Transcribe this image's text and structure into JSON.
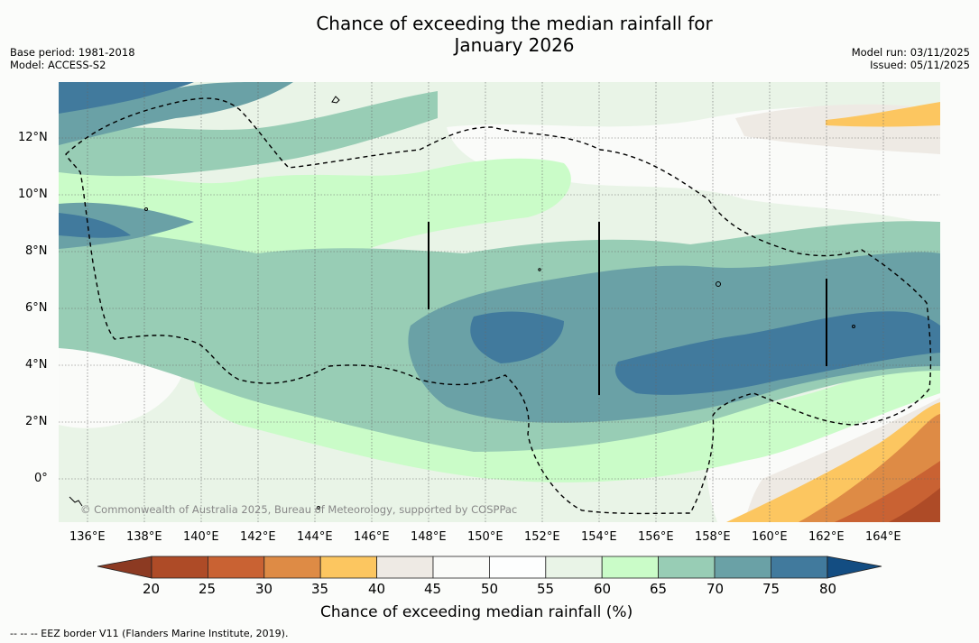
{
  "header": {
    "title_line1": "Chance of exceeding the median rainfall for",
    "title_line2": "January 2026",
    "base_period": "Base period: 1981-2018",
    "model": "Model: ACCESS-S2",
    "model_run": "Model run: 03/11/2025",
    "issued": "Issued: 05/11/2025"
  },
  "map": {
    "lat_labels": [
      "12°N",
      "10°N",
      "8°N",
      "6°N",
      "4°N",
      "2°N",
      "0°"
    ],
    "lon_labels": [
      "136°E",
      "138°E",
      "140°E",
      "142°E",
      "144°E",
      "146°E",
      "148°E",
      "150°E",
      "152°E",
      "154°E",
      "156°E",
      "158°E",
      "160°E",
      "162°E",
      "164°E"
    ],
    "copyright": "© Commonwealth of Australia 2025, Bureau of Meteorology, supported by COSPPac"
  },
  "colorbar": {
    "ticks": [
      "20",
      "25",
      "30",
      "35",
      "40",
      "45",
      "50",
      "55",
      "60",
      "65",
      "70",
      "75",
      "80"
    ],
    "colors": [
      "#ae4b27",
      "#c96233",
      "#de8b45",
      "#fcc660",
      "#eeeae4",
      "#fafbf9",
      "#fdfefe",
      "#e9f4e7",
      "#cafcc8",
      "#98cdb5",
      "#6aa1a6",
      "#417a9d"
    ],
    "under_color": "#8c3a22",
    "over_color": "#134d82",
    "label": "Chance of exceeding median rainfall (%)"
  },
  "footer": {
    "legend_note": "--  --  -- EEZ border V11 (Flanders Marine Institute, 2019)."
  }
}
